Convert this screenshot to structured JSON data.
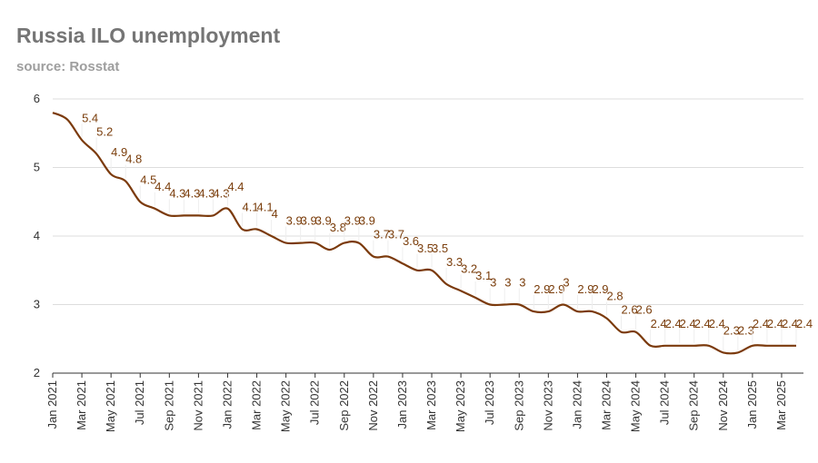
{
  "title": "Russia ILO unemployment",
  "subtitle": "source: Rosstat",
  "colors": {
    "line": "#7b3a0c",
    "label": "#7a3d0b",
    "grid": "#dddddd",
    "axis": "#333333"
  },
  "chart_data": {
    "type": "line",
    "title": "Russia ILO unemployment",
    "subtitle": "source: Rosstat",
    "xlabel": "",
    "ylabel": "",
    "ylim": [
      2,
      6
    ],
    "yticks": [
      2,
      3,
      4,
      5,
      6
    ],
    "grid": true,
    "x": [
      "Jan 2021",
      "Feb 2021",
      "Mar 2021",
      "Apr 2021",
      "May 2021",
      "Jun 2021",
      "Jul 2021",
      "Aug 2021",
      "Sep 2021",
      "Oct 2021",
      "Nov 2021",
      "Dec 2021",
      "Jan 2022",
      "Feb 2022",
      "Mar 2022",
      "Apr 2022",
      "May 2022",
      "Jun 2022",
      "Jul 2022",
      "Aug 2022",
      "Sep 2022",
      "Oct 2022",
      "Nov 2022",
      "Dec 2022",
      "Jan 2023",
      "Feb 2023",
      "Mar 2023",
      "Apr 2023",
      "May 2023",
      "Jun 2023",
      "Jul 2023",
      "Aug 2023",
      "Sep 2023",
      "Oct 2023",
      "Nov 2023",
      "Dec 2023",
      "Jan 2024",
      "Feb 2024",
      "Mar 2024",
      "Apr 2024",
      "May 2024",
      "Jun 2024",
      "Jul 2024",
      "Aug 2024",
      "Sep 2024",
      "Oct 2024",
      "Nov 2024",
      "Dec 2024",
      "Jan 2025",
      "Feb 2025",
      "Mar 2025",
      "Apr 2025"
    ],
    "tick_labels": [
      "Jan 2021",
      "Mar 2021",
      "May 2021",
      "Jul 2021",
      "Sep 2021",
      "Nov 2021",
      "Jan 2022",
      "Mar 2022",
      "May 2022",
      "Jul 2022",
      "Sep 2022",
      "Nov 2022",
      "Jan 2023",
      "Mar 2023",
      "May 2023",
      "Jul 2023",
      "Sep 2023",
      "Nov 2023",
      "Jan 2024",
      "Mar 2024",
      "May 2024",
      "Jul 2024",
      "Sep 2024",
      "Nov 2024",
      "Jan 2025",
      "Mar 2025"
    ],
    "series": [
      {
        "values": [
          5.8,
          5.7,
          5.4,
          5.2,
          4.9,
          4.8,
          4.5,
          4.4,
          4.3,
          4.3,
          4.3,
          4.3,
          4.4,
          4.1,
          4.1,
          4.0,
          3.9,
          3.9,
          3.9,
          3.8,
          3.9,
          3.9,
          3.7,
          3.7,
          3.6,
          3.5,
          3.5,
          3.3,
          3.2,
          3.1,
          3.0,
          3.0,
          3.0,
          2.9,
          2.9,
          3.0,
          2.9,
          2.9,
          2.8,
          2.6,
          2.6,
          2.4,
          2.4,
          2.4,
          2.4,
          2.4,
          2.3,
          2.3,
          2.4,
          2.4,
          2.4,
          2.4
        ],
        "data_labels": [
          "",
          "",
          "5.4",
          "5.2",
          "4.9",
          "4.8",
          "4.5",
          "4.4",
          "4.3",
          "4.3",
          "4.3",
          "4.3",
          "4.4",
          "4.1",
          "4.1",
          "4",
          "3.9",
          "3.9",
          "3.9",
          "3.8",
          "3.9",
          "3.9",
          "3.7",
          "3.7",
          "3.6",
          "3.5",
          "3.5",
          "3.3",
          "3.2",
          "3.1",
          "3",
          "3",
          "3",
          "2.9",
          "2.9",
          "3",
          "2.9",
          "2.9",
          "2.8",
          "2.6",
          "2.6",
          "2.4",
          "2.4",
          "2.4",
          "2.4",
          "2.4",
          "2.3",
          "2.3",
          "2.4",
          "2.4",
          "2.4",
          "2.4"
        ]
      }
    ]
  }
}
